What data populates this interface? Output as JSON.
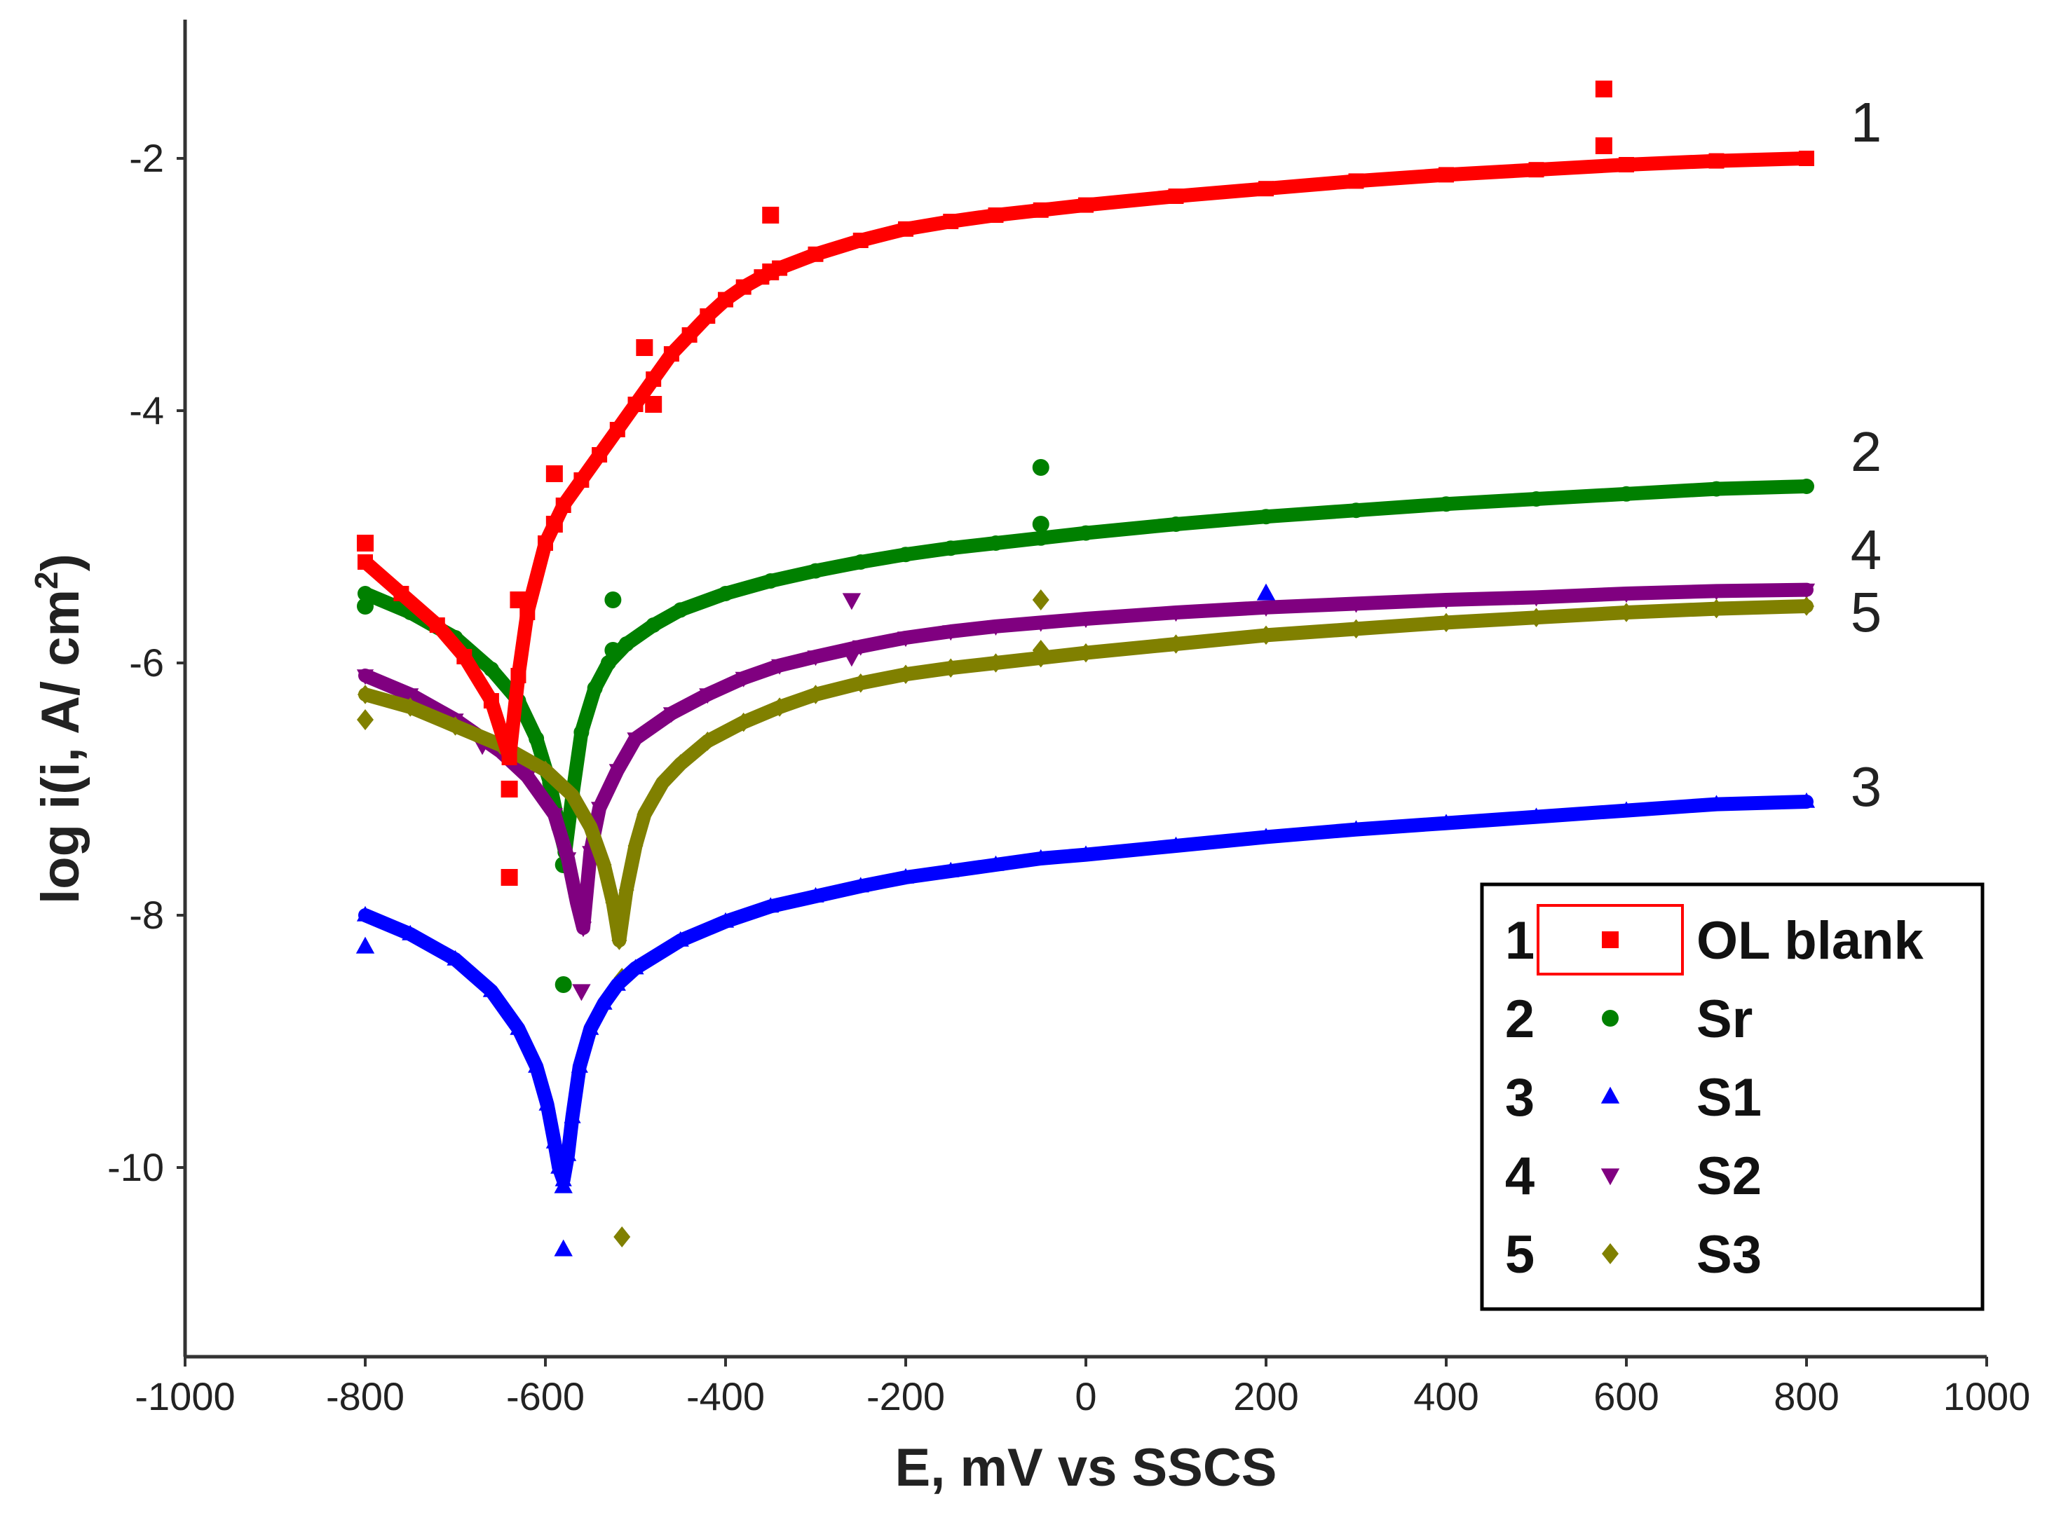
{
  "chart_data": {
    "type": "line",
    "title": "",
    "xlabel": "E, mV vs SSCS",
    "ylabel_main": "log i(i, A/ cm",
    "ylabel_sup": "2",
    "ylabel_end": ")",
    "xlim": [
      -1000,
      1000
    ],
    "ylim": [
      -11.5,
      -0.9
    ],
    "xticks": [
      -1000,
      -800,
      -600,
      -400,
      -200,
      0,
      200,
      400,
      600,
      800,
      1000
    ],
    "xtick_labels": [
      "-1000",
      "-800",
      "-600",
      "-400",
      "-200",
      "0",
      "200",
      "400",
      "600",
      "800",
      "1000"
    ],
    "yticks": [
      -2,
      -4,
      -6,
      -8,
      -10
    ],
    "ytick_labels": [
      "-2",
      "-4",
      "-6",
      "-8",
      "-10"
    ],
    "legend_position": "bottom-right",
    "series": [
      {
        "id": "1",
        "name": "OL blank",
        "color": "#ff0000",
        "marker": "square",
        "x": [
          -800,
          -760,
          -720,
          -690,
          -660,
          -640,
          -630,
          -620,
          -600,
          -580,
          -560,
          -540,
          -520,
          -500,
          -480,
          -460,
          -440,
          -420,
          -400,
          -380,
          -360,
          -340,
          -300,
          -250,
          -200,
          -150,
          -100,
          -50,
          0,
          100,
          200,
          300,
          400,
          500,
          600,
          700,
          800
        ],
        "y": [
          -5.2,
          -5.45,
          -5.7,
          -5.95,
          -6.3,
          -6.75,
          -6.1,
          -5.6,
          -5.05,
          -4.75,
          -4.55,
          -4.35,
          -4.15,
          -3.95,
          -3.75,
          -3.55,
          -3.4,
          -3.25,
          -3.12,
          -3.02,
          -2.94,
          -2.87,
          -2.76,
          -2.65,
          -2.56,
          -2.5,
          -2.45,
          -2.41,
          -2.37,
          -2.3,
          -2.24,
          -2.18,
          -2.13,
          -2.09,
          -2.05,
          -2.02,
          -2.0
        ],
        "outliers": [
          [
            -800,
            -5.05
          ],
          [
            -640,
            -7.0
          ],
          [
            -640,
            -7.7
          ],
          [
            -630,
            -5.5
          ],
          [
            -590,
            -4.5
          ],
          [
            -590,
            -4.9
          ],
          [
            -490,
            -3.5
          ],
          [
            -480,
            -3.95
          ],
          [
            -350,
            -2.45
          ],
          [
            -350,
            -2.9
          ],
          [
            575,
            -1.45
          ],
          [
            575,
            -1.9
          ]
        ]
      },
      {
        "id": "2",
        "name": "Sr",
        "color": "#008000",
        "marker": "circle",
        "x": [
          -800,
          -750,
          -700,
          -660,
          -630,
          -610,
          -595,
          -585,
          -578,
          -570,
          -560,
          -545,
          -530,
          -510,
          -480,
          -450,
          -400,
          -350,
          -300,
          -250,
          -200,
          -150,
          -100,
          -50,
          0,
          100,
          200,
          300,
          400,
          500,
          600,
          700,
          800
        ],
        "y": [
          -5.45,
          -5.6,
          -5.8,
          -6.05,
          -6.3,
          -6.6,
          -6.95,
          -7.3,
          -7.5,
          -7.05,
          -6.55,
          -6.2,
          -6.0,
          -5.85,
          -5.7,
          -5.58,
          -5.45,
          -5.35,
          -5.27,
          -5.2,
          -5.14,
          -5.09,
          -5.05,
          -5.01,
          -4.97,
          -4.9,
          -4.84,
          -4.79,
          -4.74,
          -4.7,
          -4.66,
          -4.62,
          -4.6
        ],
        "outliers": [
          [
            -800,
            -5.55
          ],
          [
            -580,
            -7.6
          ],
          [
            -580,
            -8.55
          ],
          [
            -525,
            -5.5
          ],
          [
            -525,
            -5.9
          ],
          [
            -50,
            -4.45
          ],
          [
            -50,
            -4.9
          ]
        ]
      },
      {
        "id": "3",
        "name": "S1",
        "color": "#0000ff",
        "marker": "triangle-up",
        "x": [
          -800,
          -750,
          -700,
          -660,
          -630,
          -610,
          -598,
          -590,
          -585,
          -580,
          -575,
          -570,
          -562,
          -550,
          -535,
          -520,
          -500,
          -450,
          -400,
          -350,
          -300,
          -250,
          -200,
          -150,
          -100,
          -50,
          0,
          100,
          200,
          300,
          400,
          500,
          600,
          700,
          800
        ],
        "y": [
          -8.0,
          -8.15,
          -8.35,
          -8.6,
          -8.9,
          -9.2,
          -9.5,
          -9.8,
          -10.0,
          -10.1,
          -9.9,
          -9.6,
          -9.2,
          -8.9,
          -8.7,
          -8.55,
          -8.42,
          -8.2,
          -8.05,
          -7.93,
          -7.85,
          -7.77,
          -7.7,
          -7.65,
          -7.6,
          -7.55,
          -7.52,
          -7.45,
          -7.38,
          -7.32,
          -7.27,
          -7.22,
          -7.17,
          -7.12,
          -7.1
        ],
        "outliers": [
          [
            -800,
            -8.25
          ],
          [
            -580,
            -10.15
          ],
          [
            -580,
            -10.65
          ],
          [
            200,
            -5.45
          ]
        ]
      },
      {
        "id": "4",
        "name": "S2",
        "color": "#800080",
        "marker": "triangle-down",
        "x": [
          -800,
          -750,
          -700,
          -650,
          -620,
          -590,
          -575,
          -565,
          -558,
          -550,
          -540,
          -520,
          -500,
          -460,
          -420,
          -380,
          -340,
          -300,
          -250,
          -200,
          -150,
          -100,
          -50,
          0,
          100,
          200,
          300,
          400,
          500,
          600,
          700,
          800
        ],
        "y": [
          -6.1,
          -6.25,
          -6.45,
          -6.7,
          -6.9,
          -7.2,
          -7.55,
          -7.9,
          -8.1,
          -7.5,
          -7.15,
          -6.85,
          -6.6,
          -6.4,
          -6.25,
          -6.12,
          -6.02,
          -5.95,
          -5.87,
          -5.8,
          -5.75,
          -5.71,
          -5.68,
          -5.65,
          -5.6,
          -5.56,
          -5.53,
          -5.5,
          -5.48,
          -5.45,
          -5.43,
          -5.42
        ],
        "outliers": [
          [
            -670,
            -6.65
          ],
          [
            -560,
            -8.6
          ],
          [
            -260,
            -5.5
          ],
          [
            -260,
            -5.95
          ]
        ]
      },
      {
        "id": "5",
        "name": "S3",
        "color": "#808000",
        "marker": "diamond",
        "x": [
          -800,
          -750,
          -700,
          -650,
          -600,
          -570,
          -550,
          -535,
          -525,
          -518,
          -510,
          -500,
          -490,
          -470,
          -450,
          -420,
          -380,
          -340,
          -300,
          -250,
          -200,
          -150,
          -100,
          -50,
          0,
          100,
          200,
          300,
          400,
          500,
          600,
          700,
          800
        ],
        "y": [
          -6.25,
          -6.35,
          -6.5,
          -6.65,
          -6.85,
          -7.05,
          -7.3,
          -7.6,
          -7.9,
          -8.2,
          -7.8,
          -7.45,
          -7.2,
          -6.95,
          -6.8,
          -6.62,
          -6.47,
          -6.35,
          -6.25,
          -6.16,
          -6.09,
          -6.04,
          -6.0,
          -5.96,
          -5.92,
          -5.85,
          -5.78,
          -5.73,
          -5.68,
          -5.64,
          -5.6,
          -5.57,
          -5.55
        ],
        "outliers": [
          [
            -800,
            -6.45
          ],
          [
            -515,
            -8.5
          ],
          [
            -515,
            -10.55
          ],
          [
            -50,
            -5.5
          ],
          [
            -50,
            -5.9
          ]
        ]
      }
    ],
    "curve_labels": [
      {
        "text": "1",
        "series": "1"
      },
      {
        "text": "2",
        "series": "2"
      },
      {
        "text": "4",
        "series": "4"
      },
      {
        "text": "5",
        "series": "5"
      },
      {
        "text": "3",
        "series": "3"
      }
    ],
    "legend": [
      {
        "num": "1",
        "name": "OL blank",
        "series": "1",
        "highlighted": true
      },
      {
        "num": "2",
        "name": "Sr",
        "series": "2",
        "highlighted": false
      },
      {
        "num": "3",
        "name": "S1",
        "series": "3",
        "highlighted": false
      },
      {
        "num": "4",
        "name": "S2",
        "series": "4",
        "highlighted": false
      },
      {
        "num": "5",
        "name": "S3",
        "series": "5",
        "highlighted": false
      }
    ]
  }
}
